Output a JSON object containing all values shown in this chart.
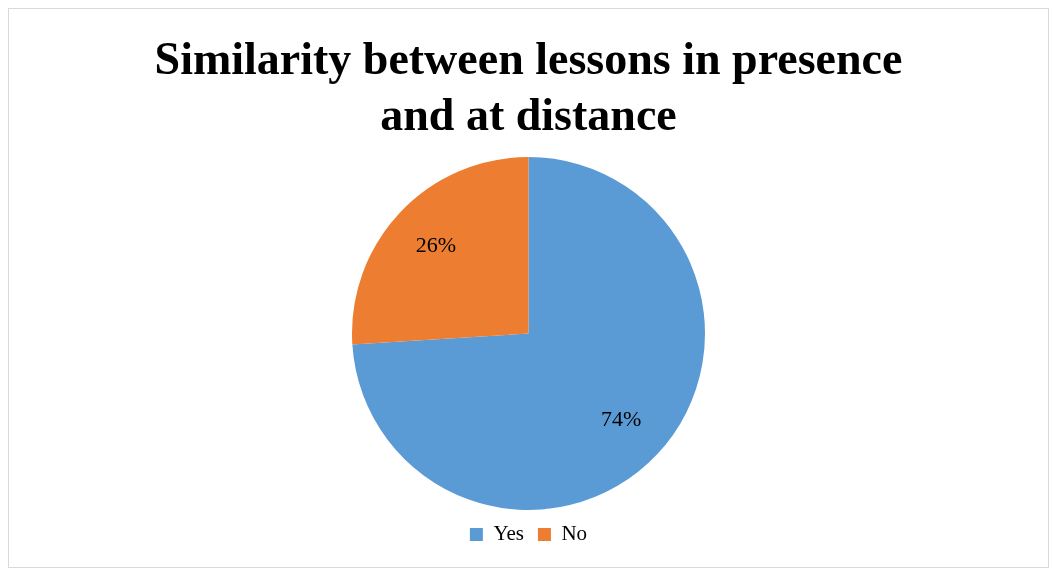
{
  "chart_data": {
    "type": "pie",
    "title": "Similarity between lessons in presence and at distance",
    "categories": [
      "Yes",
      "No"
    ],
    "values": [
      74,
      26
    ],
    "colors": [
      "#5b9bd5",
      "#ed7d31"
    ],
    "value_labels": [
      "74%",
      "26%"
    ],
    "legend": "bottom"
  }
}
